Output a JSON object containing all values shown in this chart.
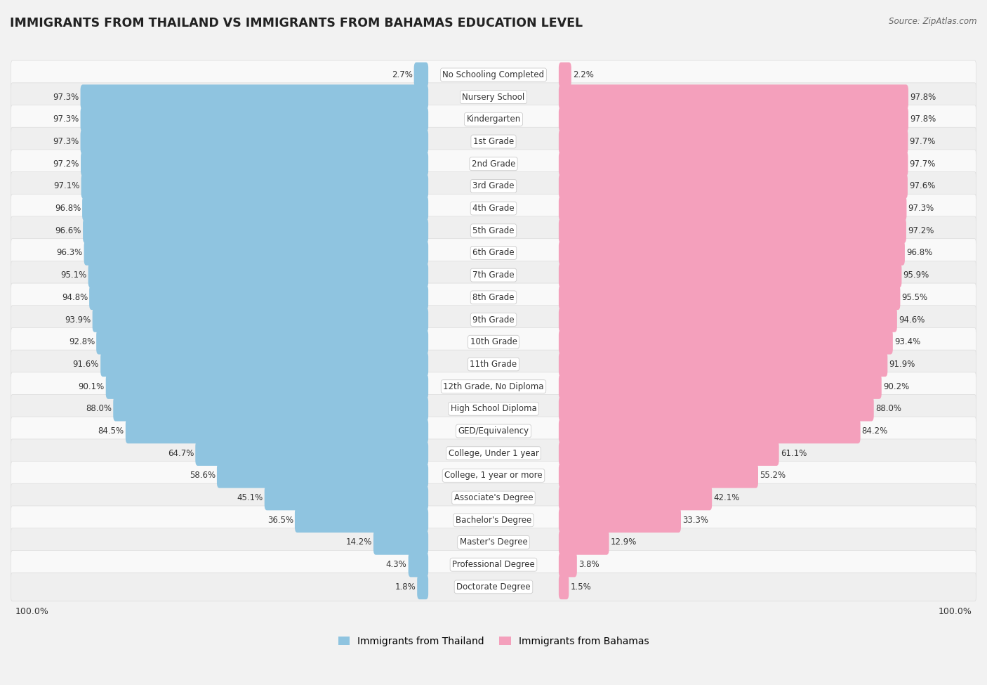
{
  "title": "IMMIGRANTS FROM THAILAND VS IMMIGRANTS FROM BAHAMAS EDUCATION LEVEL",
  "source": "Source: ZipAtlas.com",
  "categories": [
    "No Schooling Completed",
    "Nursery School",
    "Kindergarten",
    "1st Grade",
    "2nd Grade",
    "3rd Grade",
    "4th Grade",
    "5th Grade",
    "6th Grade",
    "7th Grade",
    "8th Grade",
    "9th Grade",
    "10th Grade",
    "11th Grade",
    "12th Grade, No Diploma",
    "High School Diploma",
    "GED/Equivalency",
    "College, Under 1 year",
    "College, 1 year or more",
    "Associate's Degree",
    "Bachelor's Degree",
    "Master's Degree",
    "Professional Degree",
    "Doctorate Degree"
  ],
  "thailand": [
    2.7,
    97.3,
    97.3,
    97.3,
    97.2,
    97.1,
    96.8,
    96.6,
    96.3,
    95.1,
    94.8,
    93.9,
    92.8,
    91.6,
    90.1,
    88.0,
    84.5,
    64.7,
    58.6,
    45.1,
    36.5,
    14.2,
    4.3,
    1.8
  ],
  "bahamas": [
    2.2,
    97.8,
    97.8,
    97.7,
    97.7,
    97.6,
    97.3,
    97.2,
    96.8,
    95.9,
    95.5,
    94.6,
    93.4,
    91.9,
    90.2,
    88.0,
    84.2,
    61.1,
    55.2,
    42.1,
    33.3,
    12.9,
    3.8,
    1.5
  ],
  "thailand_color": "#8FC4E0",
  "bahamas_color": "#F4A0BC",
  "background_color": "#f2f2f2",
  "row_light": "#f9f9f9",
  "row_dark": "#efefef",
  "label_fontsize": 8.5,
  "value_fontsize": 8.5,
  "title_fontsize": 12.5,
  "legend_fontsize": 10
}
